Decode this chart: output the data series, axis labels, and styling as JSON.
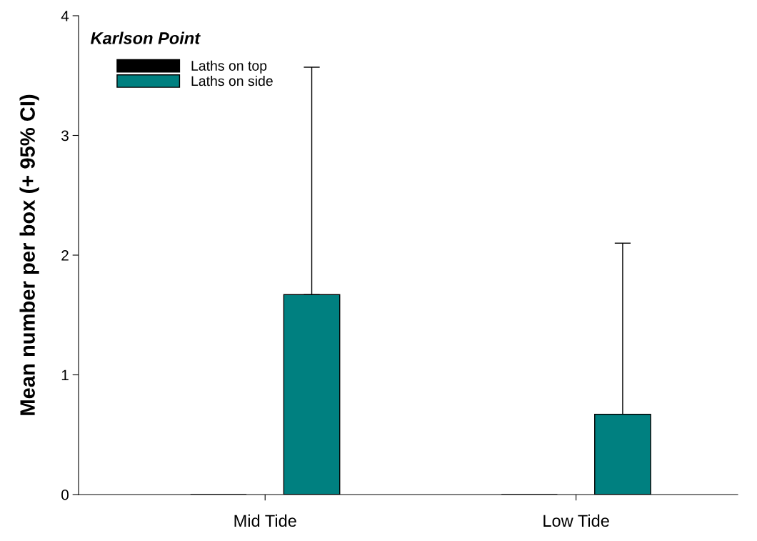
{
  "chart_data": {
    "type": "bar",
    "title": "Karlson Point",
    "ylabel": "Mean number per box (+ 95% CI)",
    "categories": [
      "Mid Tide",
      "Low Tide"
    ],
    "series": [
      {
        "name": "Laths on top",
        "color": "#000000",
        "values": [
          0,
          0
        ]
      },
      {
        "name": "Laths on side",
        "color": "#008080",
        "values": [
          1.67,
          0.67
        ],
        "errors": [
          [
            1.67,
            3.57
          ],
          [
            0.67,
            2.1
          ]
        ]
      }
    ],
    "ylim": [
      0,
      4
    ],
    "yticks": [
      0,
      1,
      2,
      3,
      4
    ],
    "grid": false,
    "legend": "top left"
  }
}
